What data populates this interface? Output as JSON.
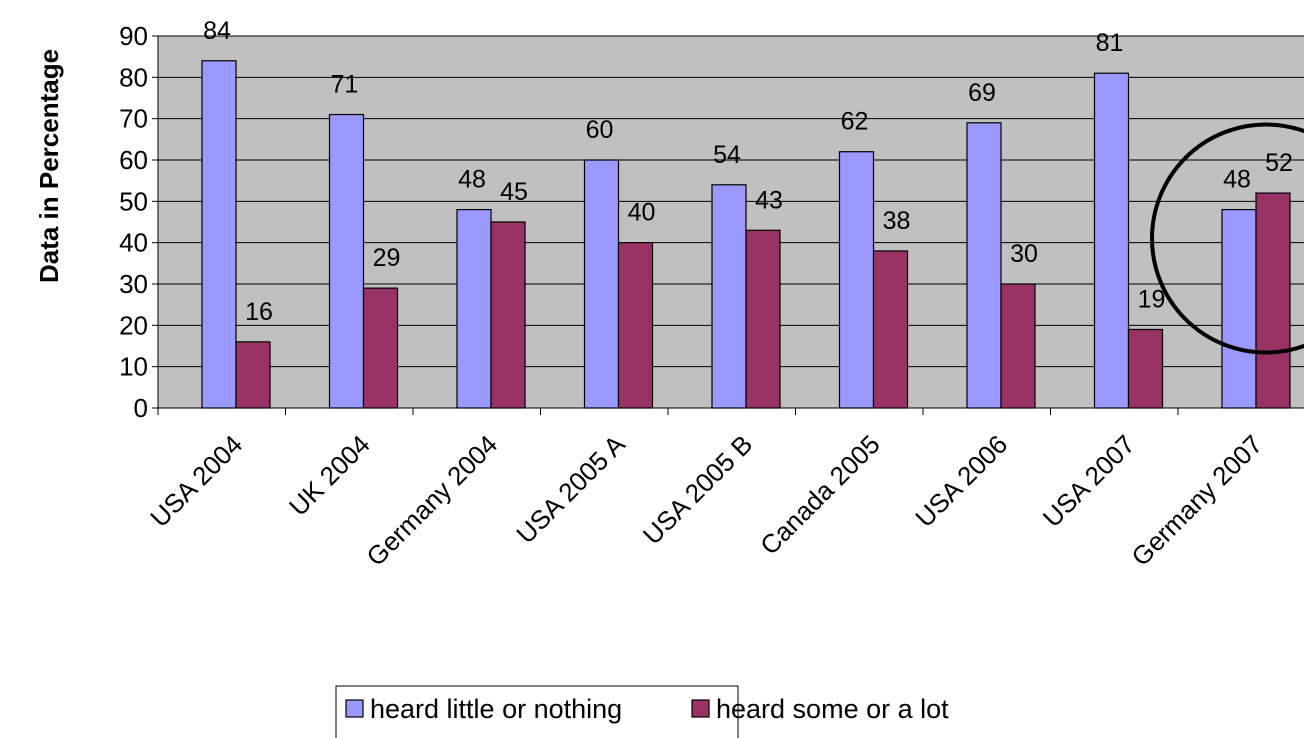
{
  "chart_data": {
    "type": "bar",
    "ylabel": "Data in Percentage",
    "xlabel": "",
    "ylim": [
      0,
      90
    ],
    "yticks": [
      0,
      10,
      20,
      30,
      40,
      50,
      60,
      70,
      80,
      90
    ],
    "grid": true,
    "plot_background": "#c0c0c0",
    "categories": [
      "USA 2004",
      "UK 2004",
      "Germany 2004",
      "USA 2005 A",
      "USA 2005 B",
      "Canada 2005",
      "USA 2006",
      "USA 2007",
      "Germany 2007"
    ],
    "series": [
      {
        "name": "heard little or nothing",
        "color": "#9999ff",
        "values": [
          84,
          71,
          48,
          60,
          54,
          62,
          69,
          81,
          48
        ]
      },
      {
        "name": "heard some or a lot",
        "color": "#993366",
        "values": [
          16,
          29,
          45,
          40,
          43,
          38,
          30,
          19,
          52
        ]
      }
    ],
    "legend_position": "bottom",
    "annotation": {
      "type": "circle",
      "category": "Germany 2007"
    }
  }
}
